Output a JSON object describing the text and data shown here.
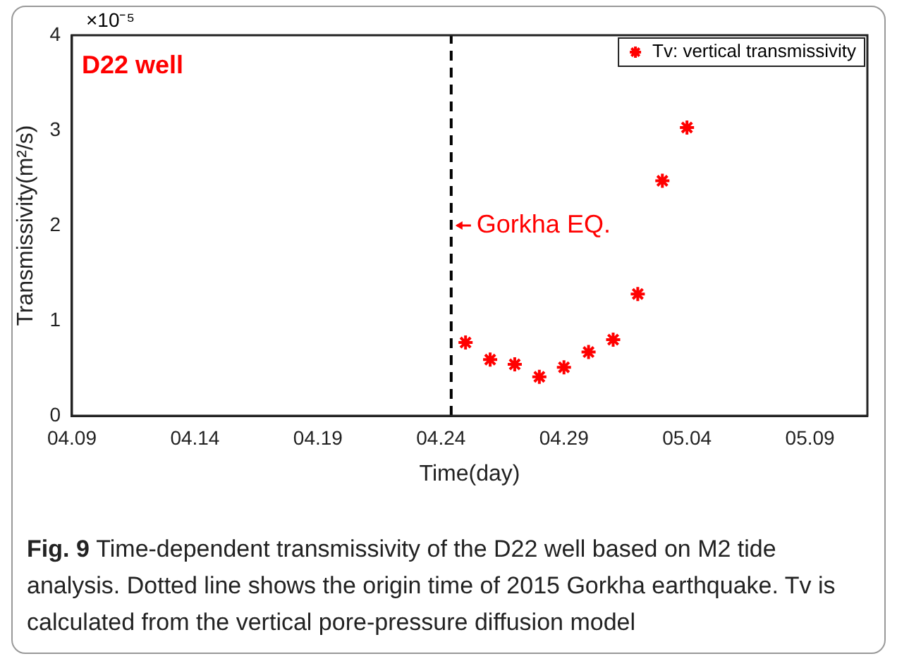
{
  "chart_data": {
    "type": "scatter",
    "xlabel": "Time(day)",
    "ylabel": "Transmissivity(m²/s)",
    "x": [
      "--04-25",
      "--04-26",
      "--04-27",
      "--04-28",
      "--04-29",
      "--04-30",
      "--05-01",
      "--05-02",
      "--05-03",
      "--05-04"
    ],
    "series": [
      {
        "name": "Tv: vertical transmissivity",
        "color": "#ff0000",
        "values": [
          0.77,
          0.59,
          0.54,
          0.41,
          0.51,
          0.67,
          0.8,
          1.28,
          2.47,
          3.03
        ]
      }
    ],
    "xlim": [
      "--04-09",
      "--05-11T08:00"
    ],
    "xticks": [
      {
        "value": "--04-09",
        "label": "04.09"
      },
      {
        "value": "--04-14",
        "label": "04.14"
      },
      {
        "value": "--04-19",
        "label": "04.19"
      },
      {
        "value": "--04-24",
        "label": "04.24"
      },
      {
        "value": "--04-29",
        "label": "04.29"
      },
      {
        "value": "--05-04",
        "label": "05.04"
      },
      {
        "value": "--05-09",
        "label": "05.09"
      }
    ],
    "ylim": [
      0,
      4
    ],
    "yticks": [
      0,
      1,
      2,
      3,
      4
    ],
    "ref_lines": [
      {
        "axis": "x",
        "value": "--04-24T10:00",
        "label": "Gorkha EQ.",
        "color": "#000000",
        "line_style": "dashed"
      }
    ],
    "annotations": [
      "×10⁻⁵",
      "D22 well",
      "Fig. 9 Time-dependent transmissivity of the D22 well based on M2 tide analysis. Dotted line shows the origin time of 2015 Gorkha earthquake. Tv is calculated from the vertical pore-pressure diffusion model"
    ],
    "legend": "top right",
    "marker": "cross",
    "grid": false
  }
}
